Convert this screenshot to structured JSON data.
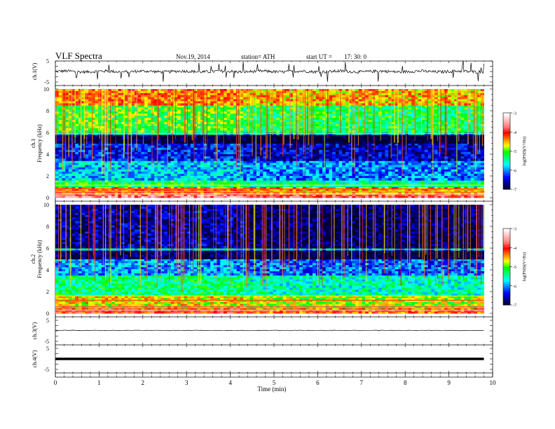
{
  "header": {
    "title": "VLF  Spectra",
    "date": "Nov.19, 2014",
    "station": "station= ATH",
    "start_label": "start  UT  =",
    "start_time": "17: 30: 0"
  },
  "colors": {
    "colormap": [
      "#000033",
      "#000080",
      "#0000ff",
      "#0080ff",
      "#00ffff",
      "#00ff80",
      "#00ff00",
      "#ffff00",
      "#ff8000",
      "#ff0000",
      "#ff8080",
      "#ffc0c0",
      "#ffffff"
    ],
    "trace": "#000000"
  },
  "chart_data": [
    {
      "type": "line",
      "panel": "ch1-waveform",
      "ylabel": "ch.1(V)",
      "ylim": [
        -5,
        5
      ],
      "yticks": [
        "5",
        "-5"
      ],
      "x": [
        0,
        1,
        2,
        3,
        4,
        5,
        6,
        7,
        8,
        9,
        9.8
      ],
      "y": [
        0,
        0,
        0,
        0,
        0,
        0,
        0,
        0,
        0,
        0,
        0
      ],
      "note_series": "noisy trace with spikes near 0 V"
    },
    {
      "type": "heatmap",
      "panel": "ch1-spectrogram",
      "ylabel": "Frequency  (kHz)",
      "ylabel_prefix": "ch.1",
      "ylim": [
        0,
        10
      ],
      "yticks": [
        "0",
        "2",
        "4",
        "6",
        "8",
        "10"
      ],
      "xlim": [
        0,
        9.8
      ],
      "colorbar": {
        "label": "log(PSD)(V²/Hz)",
        "range": [
          -7,
          -3
        ],
        "ticks": [
          "-3",
          "-4",
          "-5",
          "-6",
          "-7"
        ]
      },
      "bands": [
        {
          "from": 0.0,
          "to": 0.3,
          "level": -3.6
        },
        {
          "from": 0.3,
          "to": 1.0,
          "level": -4.2
        },
        {
          "from": 1.0,
          "to": 1.6,
          "level": -5.2
        },
        {
          "from": 1.6,
          "to": 3.4,
          "level": -5.8
        },
        {
          "from": 3.4,
          "to": 5.0,
          "level": -6.3
        },
        {
          "from": 5.0,
          "to": 5.8,
          "level": -6.9
        },
        {
          "from": 5.8,
          "to": 6.0,
          "level": -5.7
        },
        {
          "from": 6.0,
          "to": 8.5,
          "level": -5.0
        },
        {
          "from": 8.5,
          "to": 10.0,
          "level": -4.3
        }
      ]
    },
    {
      "type": "heatmap",
      "panel": "ch2-spectrogram",
      "ylabel": "Frequency  (kHz)",
      "ylabel_prefix": "ch.2",
      "ylim": [
        0,
        10
      ],
      "yticks": [
        "0",
        "2",
        "4",
        "6",
        "8",
        "10"
      ],
      "xlim": [
        0,
        9.8
      ],
      "colorbar": {
        "label": "log(PSD)(V²/Hz)",
        "range": [
          -7,
          -3
        ],
        "ticks": [
          "-3",
          "-4",
          "-5",
          "-6",
          "-7"
        ]
      },
      "bands": [
        {
          "from": 0.0,
          "to": 0.5,
          "level": -4.0
        },
        {
          "from": 0.5,
          "to": 1.6,
          "level": -4.6
        },
        {
          "from": 1.6,
          "to": 3.5,
          "level": -5.3
        },
        {
          "from": 3.5,
          "to": 5.0,
          "level": -5.9
        },
        {
          "from": 5.0,
          "to": 5.8,
          "level": -6.8
        },
        {
          "from": 5.8,
          "to": 6.0,
          "level": -5.8
        },
        {
          "from": 6.0,
          "to": 10.0,
          "level": -6.6
        }
      ]
    },
    {
      "type": "line",
      "panel": "ch3-waveform",
      "ylabel": "ch.3(V)",
      "ylim": [
        -5,
        5
      ],
      "yticks": [
        "5",
        "-5"
      ],
      "x": [
        0,
        9.8
      ],
      "y": [
        0,
        0
      ]
    },
    {
      "type": "line",
      "panel": "ch4-waveform",
      "ylabel": "ch.4(V)",
      "ylim": [
        -5,
        5
      ],
      "yticks": [
        "5",
        "-5"
      ],
      "x": [
        0,
        9.8
      ],
      "y": [
        0,
        0
      ]
    }
  ],
  "xaxis": {
    "label": "Time  (min)",
    "range": [
      0,
      10
    ],
    "ticks": [
      "0",
      "1",
      "2",
      "3",
      "4",
      "5",
      "6",
      "7",
      "8",
      "9",
      "10"
    ]
  }
}
